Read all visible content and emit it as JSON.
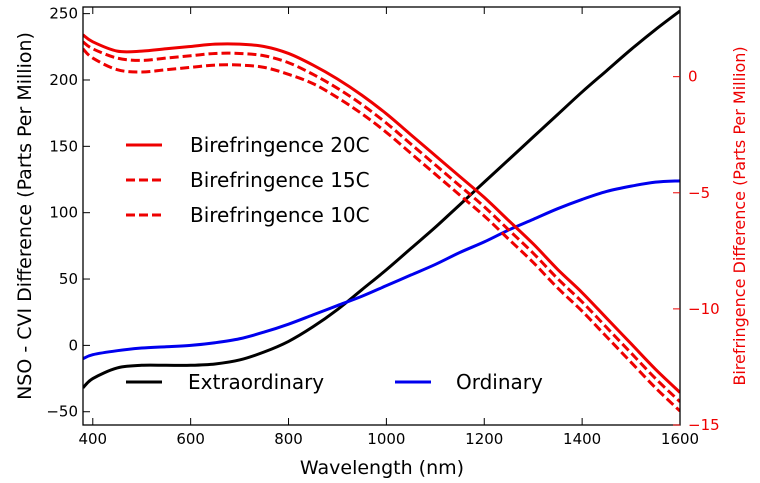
{
  "chart_data": {
    "type": "line",
    "title": "",
    "xlabel": "Wavelength (nm)",
    "ylabel_left": "NSO - CVI Difference (Parts Per Million)",
    "ylabel_right": "Birefringence Difference (Parts Per Million)",
    "xlim": [
      380,
      1600
    ],
    "ylim_left": [
      -60,
      255
    ],
    "ylim_right": [
      -15,
      3
    ],
    "grid": false,
    "x_ticks": [
      400,
      600,
      800,
      1000,
      1200,
      1400,
      1600
    ],
    "y_left_ticks": [
      -50,
      0,
      50,
      100,
      150,
      200,
      250
    ],
    "y_right_ticks": [
      -15,
      -10,
      -5,
      0
    ],
    "colors": {
      "extraordinary": "#000000",
      "ordinary": "#0000ee",
      "birefringence": "#ee0000"
    },
    "left_series": [
      {
        "name": "Extraordinary",
        "color": "#000000",
        "style": "solid",
        "x": [
          380,
          400,
          450,
          500,
          550,
          600,
          650,
          700,
          750,
          800,
          850,
          900,
          950,
          1000,
          1050,
          1100,
          1150,
          1200,
          1250,
          1300,
          1350,
          1400,
          1450,
          1500,
          1550,
          1600
        ],
        "y": [
          -32,
          -25,
          -17,
          -15,
          -15,
          -15,
          -14,
          -11,
          -5,
          3,
          14,
          27,
          42,
          57,
          73,
          89,
          106,
          123,
          140,
          157,
          174,
          191,
          207,
          223,
          238,
          252
        ]
      },
      {
        "name": "Ordinary",
        "color": "#0000ee",
        "style": "solid",
        "x": [
          380,
          400,
          450,
          500,
          550,
          600,
          650,
          700,
          750,
          800,
          850,
          900,
          950,
          1000,
          1050,
          1100,
          1150,
          1200,
          1250,
          1300,
          1350,
          1400,
          1450,
          1500,
          1550,
          1600
        ],
        "y": [
          -10,
          -7,
          -4,
          -2,
          -1,
          0,
          2,
          5,
          10,
          16,
          23,
          30,
          37,
          45,
          53,
          61,
          70,
          78,
          87,
          95,
          103,
          110,
          116,
          120,
          123,
          124
        ]
      }
    ],
    "right_series": [
      {
        "name": "Birefringence 20C",
        "color": "#ee0000",
        "style": "solid",
        "x": [
          380,
          400,
          450,
          500,
          550,
          600,
          650,
          700,
          750,
          800,
          850,
          900,
          950,
          1000,
          1050,
          1100,
          1150,
          1200,
          1250,
          1300,
          1350,
          1400,
          1450,
          1500,
          1550,
          1600
        ],
        "y": [
          1.8,
          1.5,
          1.1,
          1.1,
          1.2,
          1.3,
          1.4,
          1.4,
          1.3,
          1.0,
          0.5,
          -0.1,
          -0.8,
          -1.6,
          -2.5,
          -3.4,
          -4.3,
          -5.2,
          -6.2,
          -7.2,
          -8.3,
          -9.3,
          -10.4,
          -11.5,
          -12.6,
          -13.6
        ]
      },
      {
        "name": "Birefringence 15C",
        "color": "#ee0000",
        "style": "dashed",
        "x": [
          380,
          400,
          450,
          500,
          550,
          600,
          650,
          700,
          750,
          800,
          850,
          900,
          950,
          1000,
          1050,
          1100,
          1150,
          1200,
          1250,
          1300,
          1350,
          1400,
          1450,
          1500,
          1550,
          1600
        ],
        "y": [
          1.5,
          1.2,
          0.8,
          0.7,
          0.8,
          0.9,
          1.0,
          1.0,
          0.9,
          0.6,
          0.1,
          -0.5,
          -1.2,
          -2.0,
          -2.9,
          -3.8,
          -4.7,
          -5.6,
          -6.6,
          -7.6,
          -8.7,
          -9.7,
          -10.8,
          -11.9,
          -13.0,
          -14.0
        ]
      },
      {
        "name": "Birefringence 10C",
        "color": "#ee0000",
        "style": "dashed",
        "x": [
          380,
          400,
          450,
          500,
          550,
          600,
          650,
          700,
          750,
          800,
          850,
          900,
          950,
          1000,
          1050,
          1100,
          1150,
          1200,
          1250,
          1300,
          1350,
          1400,
          1450,
          1500,
          1550,
          1600
        ],
        "y": [
          1.2,
          0.8,
          0.3,
          0.2,
          0.3,
          0.4,
          0.5,
          0.5,
          0.4,
          0.1,
          -0.3,
          -0.9,
          -1.6,
          -2.4,
          -3.3,
          -4.2,
          -5.1,
          -6.0,
          -7.0,
          -8.0,
          -9.1,
          -10.1,
          -11.2,
          -12.3,
          -13.4,
          -14.4
        ]
      }
    ],
    "legend_upper": {
      "placement": "upper-left",
      "entries": [
        "Birefringence 20C",
        "Birefringence 15C",
        "Birefringence 10C"
      ]
    },
    "legend_lower": {
      "placement": "lower-center",
      "entries": [
        "Extraordinary",
        "Ordinary"
      ]
    }
  }
}
